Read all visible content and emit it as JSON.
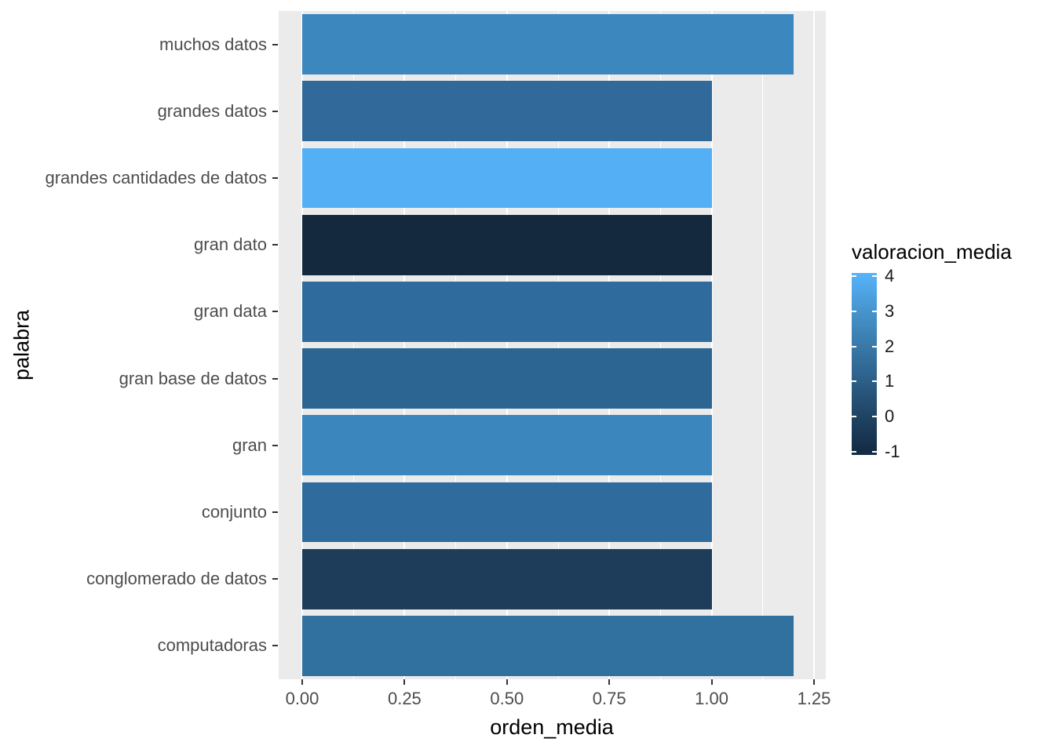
{
  "figure": {
    "background": "#FFFFFF",
    "panel_background": "#EBEBEB",
    "gridline_color": "#FFFFFF",
    "axis_text_color": "#4D4D4D"
  },
  "chart_data": {
    "type": "bar",
    "orientation": "horizontal",
    "title": "",
    "xlabel": "orden_media",
    "ylabel": "palabra",
    "categories": [
      "muchos datos",
      "grandes datos",
      "grandes cantidades de datos",
      "gran dato",
      "gran data",
      "gran base de datos",
      "gran",
      "conjunto",
      "conglomerado de datos",
      "computadoras"
    ],
    "values": [
      1.2,
      1.0,
      1.0,
      1.0,
      1.0,
      1.0,
      1.0,
      1.0,
      1.0,
      1.2
    ],
    "bar_colors": [
      "#3D87BF",
      "#30699A",
      "#55AFF5",
      "#15293E",
      "#2F6C9D",
      "#2D6592",
      "#3C86BE",
      "#2F6C9D",
      "#1D3D5A",
      "#30719F"
    ],
    "valoracion_media_estimates": [
      2,
      1,
      4,
      -1,
      1.5,
      1,
      2,
      1.5,
      0,
      1.5
    ],
    "x_ticks": {
      "values": [
        0,
        0.25,
        0.5,
        0.75,
        1.0,
        1.25
      ],
      "labels": [
        "0.00",
        "0.25",
        "0.50",
        "0.75",
        "1.00",
        "1.25"
      ]
    },
    "xlim": [
      -0.06,
      1.28
    ],
    "grid": {
      "major": true,
      "minor": true
    },
    "legend": {
      "title": "valoracion_media",
      "type": "colorbar",
      "position": "right",
      "tick_values": [
        4,
        3,
        2,
        1,
        0,
        -1
      ],
      "tick_labels": [
        "4",
        "3",
        "2",
        "1",
        "0",
        "-1"
      ],
      "limits": [
        -1.1,
        4.1
      ],
      "color_high": "#56B1F7",
      "color_low": "#132B43",
      "gradient_stops": [
        {
          "pos": 0,
          "color": "#57B2F8"
        },
        {
          "pos": 2,
          "color": "#56B1F7"
        },
        {
          "pos": 21,
          "color": "#4694CD"
        },
        {
          "pos": 40,
          "color": "#3979A9"
        },
        {
          "pos": 60,
          "color": "#2C5E86"
        },
        {
          "pos": 79,
          "color": "#1F4363"
        },
        {
          "pos": 98,
          "color": "#142C45"
        },
        {
          "pos": 100,
          "color": "#132B43"
        }
      ]
    }
  }
}
